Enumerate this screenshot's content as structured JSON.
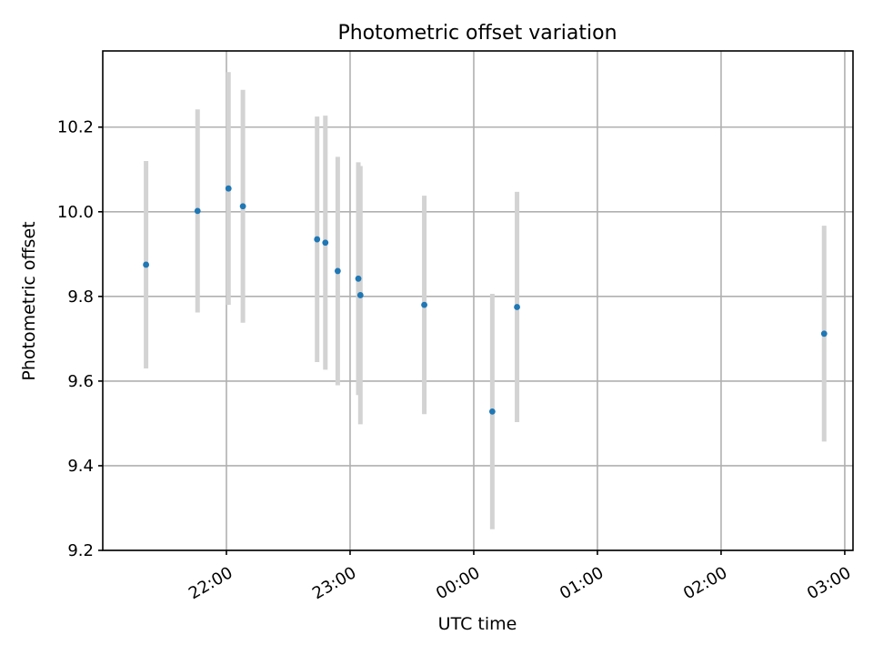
{
  "chart_data": {
    "type": "scatter",
    "title": "Photometric offset variation",
    "xlabel": "UTC time",
    "ylabel": "Photometric offset",
    "ylim": [
      9.2,
      10.38
    ],
    "xlim": [
      "21:00",
      "03:04"
    ],
    "grid": true,
    "y_ticks": [
      {
        "value": 9.2,
        "label": "9.2"
      },
      {
        "value": 9.4,
        "label": "9.4"
      },
      {
        "value": 9.6,
        "label": "9.6"
      },
      {
        "value": 9.8,
        "label": "9.8"
      },
      {
        "value": 10.0,
        "label": "10.0"
      },
      {
        "value": 10.2,
        "label": "10.2"
      }
    ],
    "x_ticks": [
      {
        "time": "22:00",
        "label": "22:00"
      },
      {
        "time": "23:00",
        "label": "23:00"
      },
      {
        "time": "00:00",
        "label": "00:00"
      },
      {
        "time": "01:00",
        "label": "01:00"
      },
      {
        "time": "02:00",
        "label": "02:00"
      },
      {
        "time": "03:00",
        "label": "03:00"
      }
    ],
    "points": [
      {
        "time": "21:21",
        "y": 9.875,
        "err": 0.245
      },
      {
        "time": "21:46",
        "y": 10.002,
        "err": 0.24
      },
      {
        "time": "22:01",
        "y": 10.055,
        "err": 0.275
      },
      {
        "time": "22:08",
        "y": 10.013,
        "err": 0.275
      },
      {
        "time": "22:44",
        "y": 9.935,
        "err": 0.29
      },
      {
        "time": "22:48",
        "y": 9.927,
        "err": 0.3
      },
      {
        "time": "22:54",
        "y": 9.86,
        "err": 0.27
      },
      {
        "time": "23:04",
        "y": 9.842,
        "err": 0.275
      },
      {
        "time": "23:05",
        "y": 9.803,
        "err": 0.305
      },
      {
        "time": "23:36",
        "y": 9.78,
        "err": 0.258
      },
      {
        "time": "00:09",
        "y": 9.528,
        "err": 0.278
      },
      {
        "time": "00:21",
        "y": 9.775,
        "err": 0.272
      },
      {
        "time": "02:50",
        "y": 9.712,
        "err": 0.255
      }
    ]
  }
}
